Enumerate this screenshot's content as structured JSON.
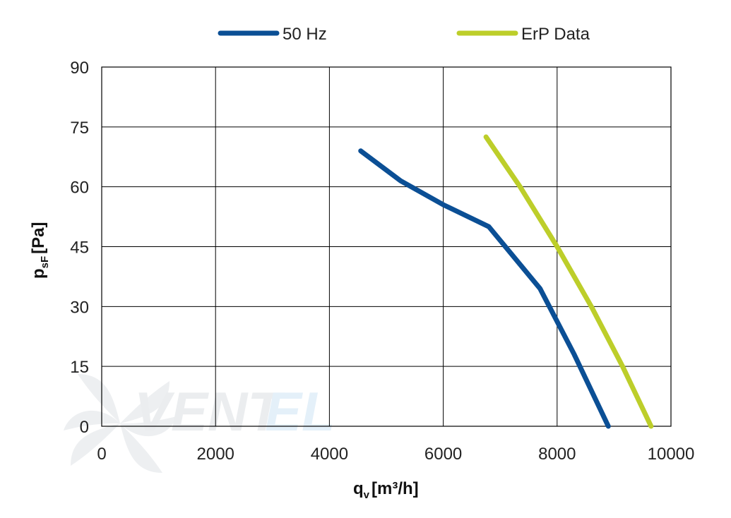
{
  "chart_data": {
    "type": "line",
    "title": "",
    "xlabel_main": "q",
    "xlabel_sub": "v",
    "xlabel_unit": "[m³/h]",
    "ylabel_main": "p",
    "ylabel_sub": "sF",
    "ylabel_unit": "[Pa]",
    "xlim": [
      0,
      10000
    ],
    "ylim": [
      0,
      90
    ],
    "xticks": [
      0,
      2000,
      4000,
      6000,
      8000,
      10000
    ],
    "yticks": [
      0,
      15,
      30,
      45,
      60,
      75,
      90
    ],
    "grid": true,
    "legend_position": "top",
    "series": [
      {
        "name": "50 Hz",
        "color": "#0b4f95",
        "points": [
          [
            4550,
            69
          ],
          [
            5250,
            61.5
          ],
          [
            6000,
            55.5
          ],
          [
            6800,
            50
          ],
          [
            7700,
            34.5
          ],
          [
            8300,
            18
          ],
          [
            8900,
            0
          ]
        ]
      },
      {
        "name": "ErP Data",
        "color": "#bdce2a",
        "points": [
          [
            6750,
            72.5
          ],
          [
            7350,
            60
          ],
          [
            8000,
            45
          ],
          [
            8600,
            30
          ],
          [
            9150,
            15
          ],
          [
            9650,
            0
          ]
        ]
      }
    ]
  },
  "watermark": {
    "text_part1": "VENT",
    "text_part2": "EL",
    "icon": "fan-blade-icon"
  }
}
